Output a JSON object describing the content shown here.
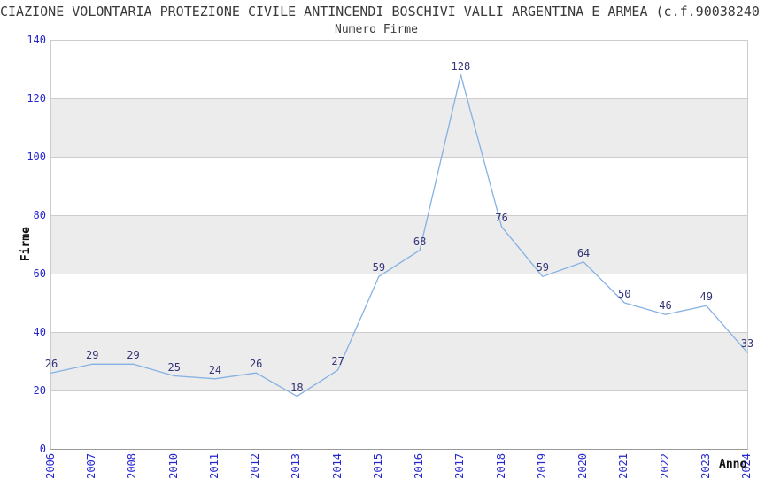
{
  "chart_data": {
    "type": "line",
    "title": "CIAZIONE VOLONTARIA PROTEZIONE CIVILE ANTINCENDI BOSCHIVI VALLI ARGENTINA E ARMEA (c.f.90038240",
    "subtitle": "Numero Firme",
    "xlabel": "Anno",
    "ylabel": "Firme",
    "categories": [
      "2006",
      "2007",
      "2008",
      "2010",
      "2011",
      "2012",
      "2013",
      "2014",
      "2015",
      "2016",
      "2017",
      "2018",
      "2019",
      "2020",
      "2021",
      "2022",
      "2023",
      "2024"
    ],
    "values": [
      26,
      29,
      29,
      25,
      24,
      26,
      18,
      27,
      59,
      68,
      128,
      76,
      59,
      64,
      50,
      46,
      49,
      33
    ],
    "ylim": [
      0,
      140
    ],
    "y_ticks": [
      0,
      20,
      40,
      60,
      80,
      100,
      120,
      140
    ],
    "grid": "horizontal",
    "bands": [
      [
        20,
        40
      ],
      [
        60,
        80
      ],
      [
        100,
        120
      ]
    ],
    "legend": "none",
    "colors": {
      "line": "#85b1e3",
      "point_label": "#333377",
      "tick_label": "#2626cf",
      "band": "#ececec",
      "grid": "#cccccc",
      "axis": "#999999",
      "title_text": "#3a3a3a"
    }
  }
}
